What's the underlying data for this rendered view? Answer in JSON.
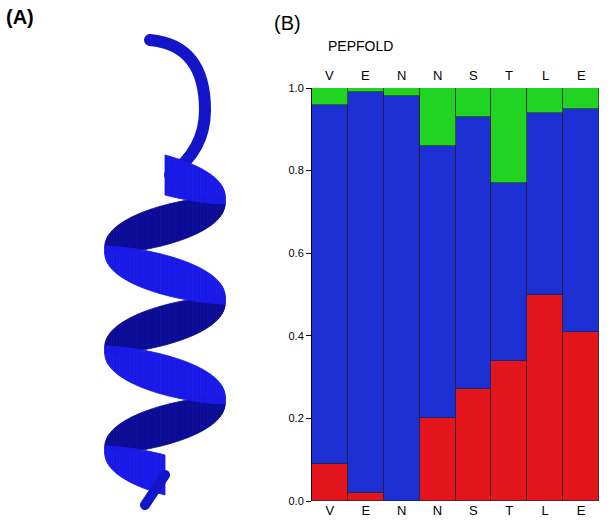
{
  "panel_a": {
    "label": "(A)"
  },
  "chart_data": {
    "type": "bar",
    "stacked": true,
    "panel_label": "(B)",
    "title": "PEPFOLD",
    "categories": [
      "V",
      "E",
      "N",
      "N",
      "S",
      "T",
      "L",
      "E"
    ],
    "series": [
      {
        "color": "#e3141b",
        "values": [
          0.09,
          0.02,
          0.0,
          0.2,
          0.27,
          0.34,
          0.5,
          0.41
        ]
      },
      {
        "color": "#1b2fd2",
        "values": [
          0.87,
          0.97,
          0.98,
          0.66,
          0.66,
          0.43,
          0.44,
          0.54
        ]
      },
      {
        "color": "#22d422",
        "values": [
          0.04,
          0.01,
          0.02,
          0.14,
          0.07,
          0.23,
          0.06,
          0.05
        ]
      }
    ],
    "ylim": [
      0,
      1
    ],
    "yticks": [
      {
        "value": 0,
        "label": "0.0"
      },
      {
        "value": 0.2,
        "label": "0.2"
      },
      {
        "value": 0.4,
        "label": "0.4"
      },
      {
        "value": 0.6,
        "label": "0.6"
      },
      {
        "value": 0.8,
        "label": "0.8"
      },
      {
        "value": 1,
        "label": "1.0"
      }
    ],
    "grid": false
  }
}
